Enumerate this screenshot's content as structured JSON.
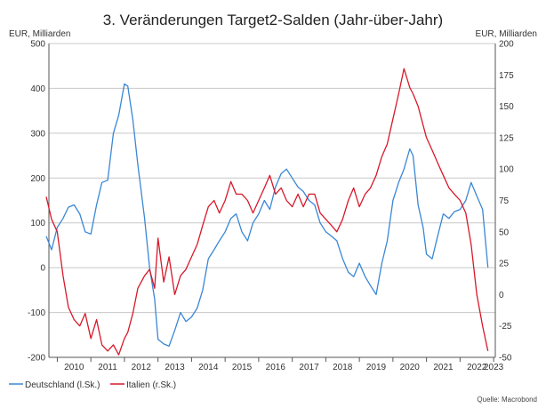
{
  "chart_data": {
    "type": "line",
    "title": "3. Veränderungen Target2-Salden (Jahr-über-Jahr)",
    "ylabel_left": "EUR, Milliarden",
    "ylabel_right": "EUR, Milliarden",
    "ylim_left": [
      -200,
      500
    ],
    "ylim_right": [
      -50,
      200
    ],
    "yticks_left": [
      "500",
      "400",
      "300",
      "200",
      "100",
      "0",
      "-100",
      "-200"
    ],
    "yticks_right": [
      "200",
      "175",
      "150",
      "125",
      "100",
      "75",
      "50",
      "25",
      "0",
      "-25",
      "-50"
    ],
    "xlim": [
      2009.75,
      2023.05
    ],
    "xticks": [
      "2010",
      "2011",
      "2012",
      "2013",
      "2014",
      "2015",
      "2016",
      "2017",
      "2018",
      "2019",
      "2020",
      "2021",
      "2022",
      "2023"
    ],
    "grid": true,
    "legend_position": "bottom-left",
    "series": [
      {
        "name": "Deutschland (l.Sk.)",
        "axis": "left",
        "color": "#3a87d6",
        "x": [
          2009.67,
          2009.83,
          2010.0,
          2010.17,
          2010.33,
          2010.5,
          2010.67,
          2010.83,
          2011.0,
          2011.17,
          2011.33,
          2011.5,
          2011.67,
          2011.83,
          2012.0,
          2012.1,
          2012.25,
          2012.4,
          2012.6,
          2012.75,
          2012.9,
          2013.0,
          2013.17,
          2013.33,
          2013.5,
          2013.67,
          2013.83,
          2014.0,
          2014.17,
          2014.33,
          2014.5,
          2014.67,
          2014.83,
          2015.0,
          2015.17,
          2015.33,
          2015.5,
          2015.67,
          2015.83,
          2016.0,
          2016.17,
          2016.33,
          2016.5,
          2016.67,
          2016.83,
          2017.0,
          2017.17,
          2017.33,
          2017.5,
          2017.67,
          2017.83,
          2018.0,
          2018.17,
          2018.33,
          2018.5,
          2018.67,
          2018.83,
          2019.0,
          2019.17,
          2019.33,
          2019.5,
          2019.67,
          2019.83,
          2020.0,
          2020.17,
          2020.33,
          2020.5,
          2020.6,
          2020.75,
          2020.9,
          2021.0,
          2021.17,
          2021.33,
          2021.5,
          2021.67,
          2021.83,
          2022.0,
          2022.17,
          2022.33,
          2022.5,
          2022.67,
          2022.83
        ],
        "y": [
          70,
          40,
          90,
          110,
          135,
          140,
          120,
          80,
          75,
          140,
          190,
          195,
          300,
          340,
          410,
          405,
          330,
          230,
          110,
          0,
          -70,
          -160,
          -170,
          -175,
          -140,
          -100,
          -120,
          -110,
          -90,
          -50,
          20,
          40,
          60,
          80,
          110,
          120,
          80,
          60,
          100,
          120,
          150,
          130,
          180,
          210,
          220,
          200,
          180,
          170,
          150,
          140,
          100,
          80,
          70,
          60,
          20,
          -10,
          -20,
          10,
          -20,
          -40,
          -60,
          10,
          60,
          150,
          190,
          220,
          265,
          250,
          140,
          90,
          30,
          20,
          70,
          120,
          110,
          125,
          130,
          150,
          190,
          160,
          130,
          0
        ]
      },
      {
        "name": "Italien (r.Sk.)",
        "axis": "right",
        "color": "#d7192a",
        "x": [
          2009.67,
          2009.83,
          2010.0,
          2010.17,
          2010.33,
          2010.5,
          2010.67,
          2010.83,
          2011.0,
          2011.17,
          2011.33,
          2011.5,
          2011.67,
          2011.83,
          2012.0,
          2012.1,
          2012.25,
          2012.4,
          2012.6,
          2012.75,
          2012.9,
          2013.0,
          2013.17,
          2013.33,
          2013.5,
          2013.67,
          2013.83,
          2014.0,
          2014.17,
          2014.33,
          2014.5,
          2014.67,
          2014.83,
          2015.0,
          2015.17,
          2015.33,
          2015.5,
          2015.67,
          2015.83,
          2016.0,
          2016.17,
          2016.33,
          2016.5,
          2016.67,
          2016.83,
          2017.0,
          2017.17,
          2017.33,
          2017.5,
          2017.67,
          2017.83,
          2018.0,
          2018.17,
          2018.33,
          2018.5,
          2018.67,
          2018.83,
          2019.0,
          2019.17,
          2019.33,
          2019.5,
          2019.67,
          2019.83,
          2020.0,
          2020.17,
          2020.33,
          2020.5,
          2020.6,
          2020.75,
          2020.9,
          2021.0,
          2021.17,
          2021.33,
          2021.5,
          2021.67,
          2021.83,
          2022.0,
          2022.17,
          2022.33,
          2022.5,
          2022.67,
          2022.83
        ],
        "y": [
          78,
          60,
          50,
          15,
          -10,
          -20,
          -25,
          -15,
          -35,
          -20,
          -40,
          -45,
          -40,
          -48,
          -35,
          -30,
          -15,
          5,
          15,
          20,
          5,
          45,
          10,
          30,
          0,
          15,
          20,
          30,
          40,
          55,
          70,
          75,
          65,
          75,
          90,
          80,
          80,
          75,
          65,
          75,
          85,
          95,
          80,
          85,
          75,
          70,
          80,
          70,
          80,
          80,
          65,
          60,
          55,
          50,
          60,
          75,
          85,
          70,
          80,
          85,
          95,
          110,
          120,
          140,
          160,
          180,
          165,
          160,
          150,
          135,
          125,
          115,
          105,
          95,
          85,
          80,
          75,
          65,
          40,
          0,
          -25,
          -45
        ]
      }
    ]
  },
  "legend": [
    {
      "label": "Deutschland (l.Sk.)",
      "color": "#3a87d6"
    },
    {
      "label": "Italien (r.Sk.)",
      "color": "#d7192a"
    }
  ],
  "source": "Quelle: Macrobond"
}
